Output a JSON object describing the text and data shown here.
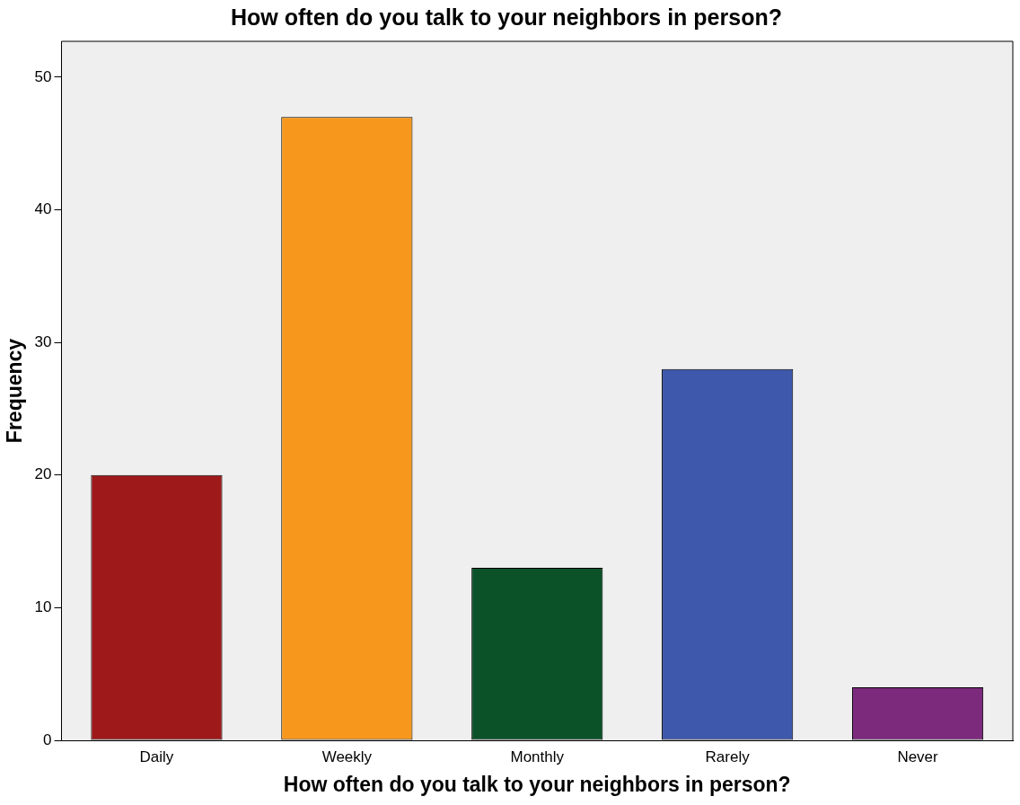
{
  "chart_data": {
    "type": "bar",
    "title": "How often do you talk to your neighbors in person?",
    "xlabel": "How often do you talk to your neighbors in person?",
    "ylabel": "Frequency",
    "categories": [
      "Daily",
      "Weekly",
      "Monthly",
      "Rarely",
      "Never"
    ],
    "values": [
      20,
      47,
      13,
      28,
      4
    ],
    "colors": [
      "#9e1a1a",
      "#f7981d",
      "#0b5229",
      "#3e58ab",
      "#7c2a7c"
    ],
    "ylim": [
      0,
      52.7
    ],
    "yticks": [
      0,
      10,
      20,
      30,
      40,
      50
    ],
    "grid": false,
    "legend": false
  }
}
